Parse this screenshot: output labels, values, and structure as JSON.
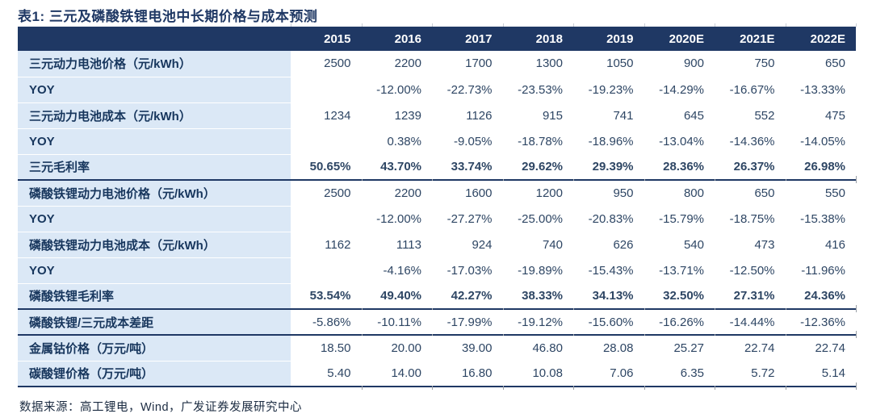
{
  "title": "表1: 三元及磷酸铁锂电池中长期价格与成本预测",
  "source": "数据来源：高工锂电，Wind，广发证券发展研究中心",
  "colors": {
    "header_bg": "#1f3864",
    "header_text": "#ffffff",
    "label_bg": "#dbe8f6",
    "label_text": "#17365d",
    "value_text": "#2e4664",
    "section_rule": "#1f3864"
  },
  "chart_data": {
    "type": "table",
    "title": "三元及磷酸铁锂电池中长期价格与成本预测",
    "columns": [
      "2015",
      "2016",
      "2017",
      "2018",
      "2019",
      "2020E",
      "2021E",
      "2022E"
    ],
    "rows": [
      {
        "label": "三元动力电池价格（元/kWh）",
        "bold": false,
        "section_end": false,
        "values": [
          "2500",
          "2200",
          "1700",
          "1300",
          "1050",
          "900",
          "750",
          "650"
        ]
      },
      {
        "label": "YOY",
        "bold": false,
        "section_end": false,
        "values": [
          "",
          "-12.00%",
          "-22.73%",
          "-23.53%",
          "-19.23%",
          "-14.29%",
          "-16.67%",
          "-13.33%"
        ]
      },
      {
        "label": "三元动力电池成本（元/kWh）",
        "bold": false,
        "section_end": false,
        "values": [
          "1234",
          "1239",
          "1126",
          "915",
          "741",
          "645",
          "552",
          "475"
        ]
      },
      {
        "label": "YOY",
        "bold": false,
        "section_end": false,
        "values": [
          "",
          "0.38%",
          "-9.05%",
          "-18.78%",
          "-18.96%",
          "-13.04%",
          "-14.36%",
          "-14.05%"
        ]
      },
      {
        "label": "三元毛利率",
        "bold": true,
        "section_end": true,
        "values": [
          "50.65%",
          "43.70%",
          "33.74%",
          "29.62%",
          "29.39%",
          "28.36%",
          "26.37%",
          "26.98%"
        ]
      },
      {
        "label": "磷酸铁锂动力电池价格（元/kWh）",
        "bold": false,
        "section_end": false,
        "values": [
          "2500",
          "2200",
          "1600",
          "1200",
          "950",
          "800",
          "650",
          "550"
        ]
      },
      {
        "label": "YOY",
        "bold": false,
        "section_end": false,
        "values": [
          "",
          "-12.00%",
          "-27.27%",
          "-25.00%",
          "-20.83%",
          "-15.79%",
          "-18.75%",
          "-15.38%"
        ]
      },
      {
        "label": "磷酸铁锂动力电池成本（元/kWh）",
        "bold": false,
        "section_end": false,
        "values": [
          "1162",
          "1113",
          "924",
          "740",
          "626",
          "540",
          "473",
          "416"
        ]
      },
      {
        "label": "YOY",
        "bold": false,
        "section_end": false,
        "values": [
          "",
          "-4.16%",
          "-17.03%",
          "-19.89%",
          "-15.43%",
          "-13.71%",
          "-12.50%",
          "-11.96%"
        ]
      },
      {
        "label": "磷酸铁锂毛利率",
        "bold": true,
        "section_end": true,
        "values": [
          "53.54%",
          "49.40%",
          "42.27%",
          "38.33%",
          "34.13%",
          "32.50%",
          "27.31%",
          "24.36%"
        ]
      },
      {
        "label": "磷酸铁锂/三元成本差距",
        "bold": false,
        "section_end": true,
        "values": [
          "-5.86%",
          "-10.11%",
          "-17.99%",
          "-19.12%",
          "-15.60%",
          "-16.26%",
          "-14.44%",
          "-12.36%"
        ]
      },
      {
        "label": "金属钴价格（万元/吨）",
        "bold": false,
        "section_end": false,
        "values": [
          "18.50",
          "20.00",
          "39.00",
          "46.80",
          "28.08",
          "25.27",
          "22.74",
          "22.74"
        ]
      },
      {
        "label": "碳酸锂价格（万元/吨）",
        "bold": false,
        "section_end": true,
        "values": [
          "5.40",
          "14.00",
          "16.80",
          "10.08",
          "7.06",
          "6.35",
          "5.72",
          "5.14"
        ]
      }
    ]
  }
}
